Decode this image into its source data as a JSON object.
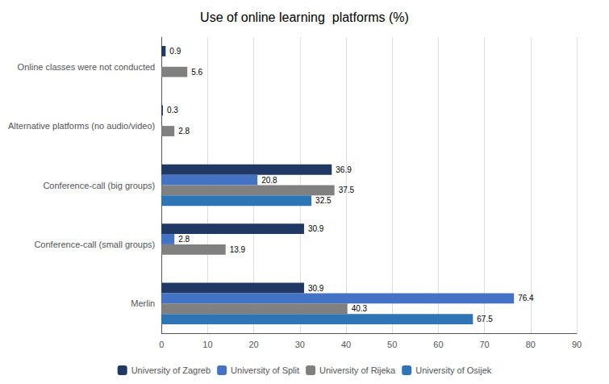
{
  "chart_data": {
    "type": "bar",
    "orientation": "horizontal",
    "title": "Use of online learning  platforms (%)",
    "categories": [
      "Merlin",
      "Conference-call (small groups)",
      "Conference-call (big groups)",
      "Alternative platforms (no audio/video)",
      "Online classes were not conducted"
    ],
    "series": [
      {
        "name": "University of Zagreb",
        "color": "#1f3864",
        "values": [
          30.9,
          30.9,
          36.9,
          0.3,
          0.9
        ]
      },
      {
        "name": "University of Split",
        "color": "#4472c4",
        "values": [
          76.4,
          2.8,
          20.8,
          0,
          0
        ]
      },
      {
        "name": "University of Rijeka",
        "color": "#808080",
        "values": [
          40.3,
          13.9,
          37.5,
          2.8,
          5.6
        ]
      },
      {
        "name": "University of Osijek",
        "color": "#2e75b6",
        "values": [
          67.5,
          0,
          32.5,
          0,
          0
        ]
      }
    ],
    "xlim": [
      0,
      90
    ],
    "xticks": [
      0,
      10,
      20,
      30,
      40,
      50,
      60,
      70,
      80,
      90
    ],
    "grid": true,
    "legend": "bottom",
    "data_labels": true
  }
}
